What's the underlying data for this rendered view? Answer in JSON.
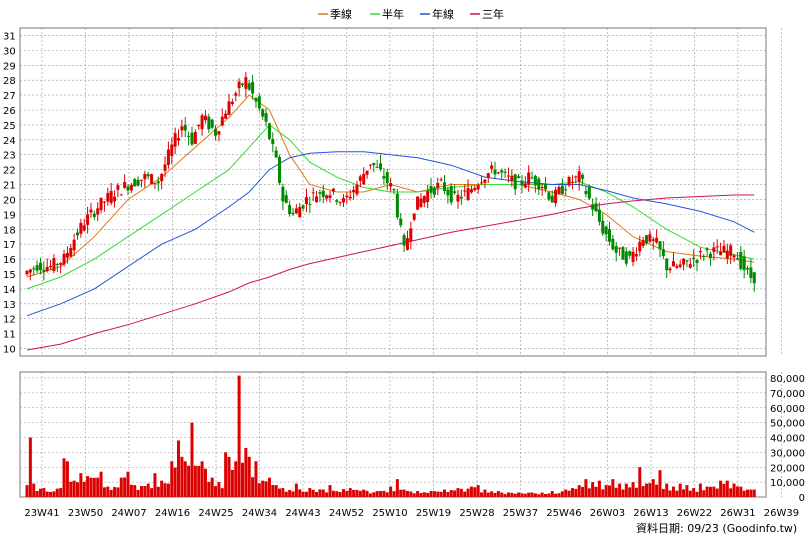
{
  "chart_data": {
    "type": "candlestick",
    "legend": [
      {
        "name": "季線",
        "color": "#e07a10"
      },
      {
        "name": "半年",
        "color": "#33dd33"
      },
      {
        "name": "年線",
        "color": "#2255dd"
      },
      {
        "name": "三年",
        "color": "#cc1166"
      }
    ],
    "colors": {
      "up": "#dd0000",
      "down": "#008800",
      "volume": "#dd0000",
      "grid": "#999999"
    },
    "price_axis": {
      "ylim": [
        9.5,
        31.5
      ],
      "ticks": [
        10,
        11,
        12,
        13,
        14,
        15,
        16,
        17,
        18,
        19,
        20,
        21,
        22,
        23,
        24,
        25,
        26,
        27,
        28,
        29,
        30,
        31
      ]
    },
    "volume_axis": {
      "ylim": [
        0,
        80000
      ],
      "ticks": [
        "0",
        "10,000",
        "20,000",
        "30,000",
        "40,000",
        "50,000",
        "60,000",
        "70,000",
        "80,000"
      ]
    },
    "x_labels": [
      "23W41",
      "23W50",
      "24W07",
      "24W16",
      "24W25",
      "24W34",
      "24W43",
      "24W52",
      "25W10",
      "25W19",
      "25W28",
      "25W37",
      "25W46",
      "26W03",
      "26W13",
      "26W22",
      "26W31",
      "26W39"
    ],
    "price_points": [
      [
        0,
        15.0
      ],
      [
        4,
        15.6
      ],
      [
        8,
        15.5
      ],
      [
        12,
        16.0
      ],
      [
        14,
        17.0
      ],
      [
        18,
        18.5
      ],
      [
        22,
        19.5
      ],
      [
        27,
        20.5
      ],
      [
        31,
        21.0
      ],
      [
        36,
        21.5
      ],
      [
        40,
        21.2
      ],
      [
        44,
        23.5
      ],
      [
        47,
        25.0
      ],
      [
        50,
        24.0
      ],
      [
        53,
        25.5
      ],
      [
        57,
        24.5
      ],
      [
        60,
        26.0
      ],
      [
        64,
        27.5
      ],
      [
        66,
        28.0
      ],
      [
        69,
        26.5
      ],
      [
        72,
        25.0
      ],
      [
        75,
        22.5
      ],
      [
        77,
        20.0
      ],
      [
        80,
        19.0
      ],
      [
        84,
        20.0
      ],
      [
        88,
        20.5
      ],
      [
        91,
        20.5
      ],
      [
        95,
        19.8
      ],
      [
        99,
        21.0
      ],
      [
        103,
        22.5
      ],
      [
        107,
        21.5
      ],
      [
        110,
        20.5
      ],
      [
        113,
        16.5
      ],
      [
        116,
        19.5
      ],
      [
        120,
        20.5
      ],
      [
        124,
        21.0
      ],
      [
        128,
        20.0
      ],
      [
        132,
        20.5
      ],
      [
        136,
        21.5
      ],
      [
        140,
        22.0
      ],
      [
        143,
        21.5
      ],
      [
        147,
        21.0
      ],
      [
        150,
        21.5
      ],
      [
        154,
        21.0
      ],
      [
        157,
        20.0
      ],
      [
        161,
        21.0
      ],
      [
        165,
        21.5
      ],
      [
        168,
        20.0
      ],
      [
        172,
        18.0
      ],
      [
        176,
        16.5
      ],
      [
        180,
        16.0
      ],
      [
        184,
        17.5
      ],
      [
        188,
        17.0
      ],
      [
        191,
        15.5
      ],
      [
        195,
        15.5
      ],
      [
        199,
        16.0
      ],
      [
        203,
        16.5
      ],
      [
        207,
        16.5
      ],
      [
        211,
        16.5
      ],
      [
        215,
        15.0
      ],
      [
        216,
        14.8
      ]
    ],
    "ma": {
      "季線": [
        [
          0,
          14.8
        ],
        [
          10,
          15.5
        ],
        [
          20,
          17.5
        ],
        [
          30,
          20.0
        ],
        [
          40,
          21.5
        ],
        [
          50,
          23.5
        ],
        [
          60,
          25.5
        ],
        [
          66,
          27.0
        ],
        [
          72,
          26.0
        ],
        [
          78,
          23.0
        ],
        [
          84,
          21.0
        ],
        [
          92,
          20.5
        ],
        [
          100,
          20.5
        ],
        [
          108,
          21.0
        ],
        [
          116,
          20.5
        ],
        [
          126,
          21.0
        ],
        [
          136,
          21.0
        ],
        [
          146,
          21.0
        ],
        [
          156,
          20.5
        ],
        [
          164,
          20.0
        ],
        [
          172,
          19.0
        ],
        [
          180,
          17.5
        ],
        [
          190,
          16.5
        ],
        [
          200,
          16.2
        ],
        [
          210,
          16.0
        ],
        [
          216,
          15.8
        ]
      ],
      "半年": [
        [
          0,
          14.0
        ],
        [
          10,
          14.8
        ],
        [
          20,
          16.0
        ],
        [
          30,
          17.5
        ],
        [
          40,
          19.0
        ],
        [
          50,
          20.5
        ],
        [
          60,
          22.0
        ],
        [
          66,
          23.5
        ],
        [
          72,
          25.0
        ],
        [
          78,
          24.0
        ],
        [
          84,
          22.5
        ],
        [
          92,
          21.5
        ],
        [
          100,
          20.8
        ],
        [
          108,
          20.5
        ],
        [
          116,
          20.5
        ],
        [
          126,
          20.8
        ],
        [
          136,
          21.0
        ],
        [
          146,
          21.0
        ],
        [
          156,
          21.0
        ],
        [
          164,
          21.2
        ],
        [
          172,
          20.5
        ],
        [
          180,
          19.5
        ],
        [
          190,
          18.0
        ],
        [
          200,
          16.8
        ],
        [
          210,
          16.3
        ],
        [
          216,
          16.0
        ]
      ],
      "年線": [
        [
          0,
          12.2
        ],
        [
          10,
          13.0
        ],
        [
          20,
          14.0
        ],
        [
          30,
          15.5
        ],
        [
          40,
          17.0
        ],
        [
          50,
          18.0
        ],
        [
          60,
          19.5
        ],
        [
          66,
          20.5
        ],
        [
          72,
          22.0
        ],
        [
          78,
          22.8
        ],
        [
          84,
          23.1
        ],
        [
          92,
          23.2
        ],
        [
          100,
          23.2
        ],
        [
          108,
          23.0
        ],
        [
          116,
          22.8
        ],
        [
          126,
          22.3
        ],
        [
          136,
          21.5
        ],
        [
          146,
          21.2
        ],
        [
          156,
          21.0
        ],
        [
          164,
          21.0
        ],
        [
          172,
          20.6
        ],
        [
          180,
          20.1
        ],
        [
          190,
          19.7
        ],
        [
          200,
          19.2
        ],
        [
          210,
          18.5
        ],
        [
          216,
          17.8
        ]
      ],
      "三年": [
        [
          0,
          9.9
        ],
        [
          10,
          10.3
        ],
        [
          20,
          11.0
        ],
        [
          30,
          11.6
        ],
        [
          40,
          12.3
        ],
        [
          50,
          13.0
        ],
        [
          60,
          13.8
        ],
        [
          66,
          14.4
        ],
        [
          72,
          14.8
        ],
        [
          78,
          15.3
        ],
        [
          84,
          15.7
        ],
        [
          92,
          16.1
        ],
        [
          100,
          16.5
        ],
        [
          108,
          16.9
        ],
        [
          116,
          17.3
        ],
        [
          126,
          17.8
        ],
        [
          136,
          18.2
        ],
        [
          146,
          18.6
        ],
        [
          156,
          19.0
        ],
        [
          164,
          19.4
        ],
        [
          172,
          19.7
        ],
        [
          180,
          19.9
        ],
        [
          190,
          20.1
        ],
        [
          200,
          20.2
        ],
        [
          210,
          20.3
        ],
        [
          216,
          20.3
        ]
      ]
    },
    "volume_points": [
      [
        0,
        8000
      ],
      [
        1,
        40000
      ],
      [
        2,
        9000
      ],
      [
        5,
        6000
      ],
      [
        10,
        6000
      ],
      [
        11,
        26000
      ],
      [
        12,
        24000
      ],
      [
        14,
        11000
      ],
      [
        16,
        16000
      ],
      [
        18,
        14000
      ],
      [
        19,
        13000
      ],
      [
        21,
        13000
      ],
      [
        22,
        17000
      ],
      [
        24,
        7000
      ],
      [
        28,
        13000
      ],
      [
        30,
        17000
      ],
      [
        32,
        8000
      ],
      [
        36,
        9000
      ],
      [
        38,
        16000
      ],
      [
        40,
        11000
      ],
      [
        43,
        24000
      ],
      [
        45,
        38000
      ],
      [
        46,
        27000
      ],
      [
        47,
        24000
      ],
      [
        48,
        21000
      ],
      [
        49,
        50000
      ],
      [
        50,
        21000
      ],
      [
        52,
        24000
      ],
      [
        53,
        19000
      ],
      [
        55,
        13000
      ],
      [
        57,
        10000
      ],
      [
        59,
        30000
      ],
      [
        60,
        27000
      ],
      [
        62,
        24000
      ],
      [
        63,
        82000
      ],
      [
        64,
        23000
      ],
      [
        65,
        33000
      ],
      [
        66,
        27000
      ],
      [
        68,
        24000
      ],
      [
        70,
        11000
      ],
      [
        72,
        13000
      ],
      [
        74,
        8000
      ],
      [
        76,
        6000
      ],
      [
        80,
        9000
      ],
      [
        84,
        6000
      ],
      [
        88,
        5000
      ],
      [
        90,
        8000
      ],
      [
        96,
        6000
      ],
      [
        100,
        5000
      ],
      [
        104,
        4000
      ],
      [
        108,
        7000
      ],
      [
        110,
        12000
      ],
      [
        112,
        5000
      ],
      [
        116,
        4000
      ],
      [
        120,
        4000
      ],
      [
        124,
        5000
      ],
      [
        128,
        6000
      ],
      [
        132,
        7000
      ],
      [
        134,
        8000
      ],
      [
        136,
        5000
      ],
      [
        140,
        4000
      ],
      [
        146,
        3000
      ],
      [
        150,
        3000
      ],
      [
        156,
        4000
      ],
      [
        160,
        5000
      ],
      [
        162,
        6000
      ],
      [
        164,
        8000
      ],
      [
        166,
        12000
      ],
      [
        168,
        10000
      ],
      [
        170,
        11000
      ],
      [
        172,
        8000
      ],
      [
        174,
        12000
      ],
      [
        176,
        9000
      ],
      [
        178,
        9000
      ],
      [
        180,
        10000
      ],
      [
        182,
        20000
      ],
      [
        184,
        9000
      ],
      [
        186,
        12000
      ],
      [
        188,
        18000
      ],
      [
        190,
        9000
      ],
      [
        192,
        7000
      ],
      [
        194,
        9000
      ],
      [
        196,
        8000
      ],
      [
        198,
        6000
      ],
      [
        200,
        9000
      ],
      [
        202,
        7000
      ],
      [
        204,
        7000
      ],
      [
        206,
        11000
      ],
      [
        208,
        11000
      ],
      [
        210,
        9000
      ],
      [
        212,
        7000
      ],
      [
        214,
        5000
      ]
    ]
  },
  "source_label": "資料日期: 09/23 (Goodinfo.tw)"
}
